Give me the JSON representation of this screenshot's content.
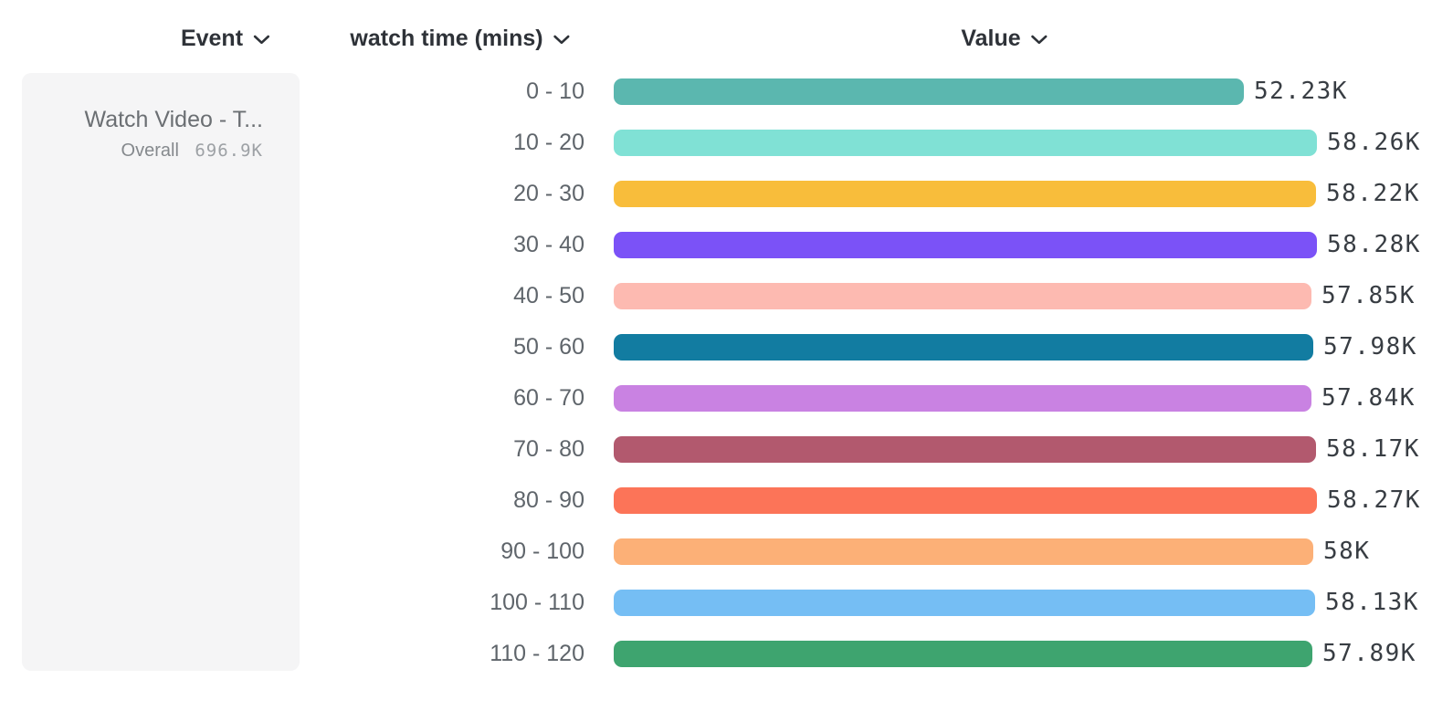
{
  "header": {
    "columns": [
      {
        "label": "Event"
      },
      {
        "label": "watch time (mins)"
      },
      {
        "label": "Value"
      }
    ]
  },
  "event_card": {
    "title": "Watch Video - T...",
    "overall_label": "Overall",
    "overall_value": "696.9K"
  },
  "icons": {
    "chevron_color": "#2e3238"
  },
  "chart_data": {
    "type": "bar",
    "orientation": "horizontal",
    "title": "",
    "xlabel": "Value",
    "ylabel": "watch time (mins)",
    "xlim": [
      0,
      58280
    ],
    "grid": false,
    "categories": [
      "0 - 10",
      "10 - 20",
      "20 - 30",
      "30 - 40",
      "40 - 50",
      "50 - 60",
      "60 - 70",
      "70 - 80",
      "80 - 90",
      "90 - 100",
      "100 - 110",
      "110 - 120"
    ],
    "values": [
      52230,
      58260,
      58220,
      58280,
      57850,
      57980,
      57840,
      58170,
      58270,
      58000,
      58130,
      57890
    ],
    "value_labels": [
      "52.23K",
      "58.26K",
      "58.22K",
      "58.28K",
      "57.85K",
      "57.98K",
      "57.84K",
      "58.17K",
      "58.27K",
      "58K",
      "58.13K",
      "57.89K"
    ],
    "colors": [
      "#5bb7af",
      "#80e1d5",
      "#f8bd3b",
      "#7b52f7",
      "#fdbab1",
      "#127ca1",
      "#c982e2",
      "#b2596e",
      "#fc7458",
      "#fcb077",
      "#75bef4",
      "#3ea46f"
    ]
  }
}
